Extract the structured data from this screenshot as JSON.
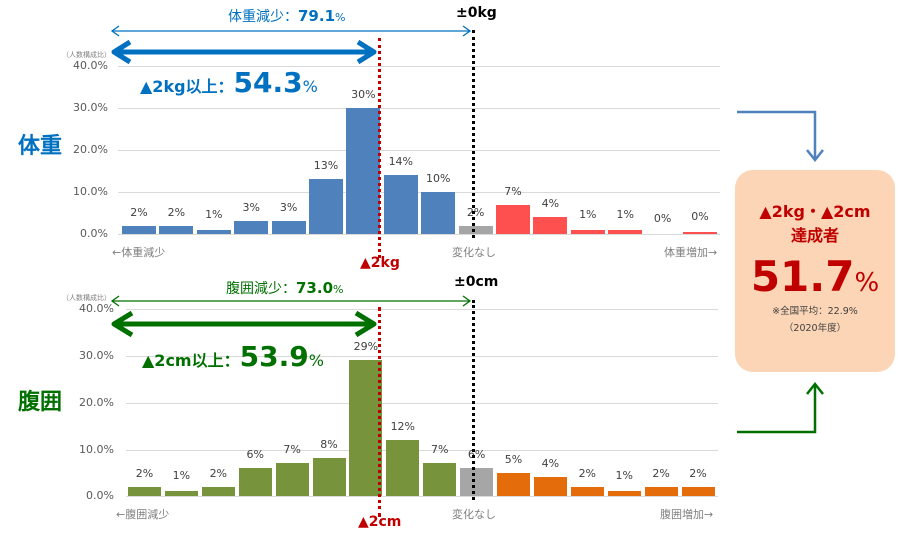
{
  "colors": {
    "weight_loss": "#4f81bd",
    "no_change": "#a6a6a6",
    "weight_gain": "#ff5050",
    "waist_loss": "#77933c",
    "waist_gain": "#e46c0a",
    "weight_accent": "#0070c0",
    "waist_accent": "#007000",
    "target_red": "#c00000",
    "summary_bg": "#fbd5b5"
  },
  "weight": {
    "section_title": "体重",
    "unit_note": "（人数構成比）",
    "loss_total_label": "体重減少：",
    "loss_total_value": "79.1",
    "loss_total_pct": "%",
    "target_label": "▲2kg以上：",
    "target_value": "54.3",
    "target_pct": "%",
    "zero_marker": "±0kg",
    "target_marker": "▲2kg",
    "axis_left": "←体重減少",
    "axis_center": "変化なし",
    "axis_right": "体重増加→"
  },
  "waist": {
    "section_title": "腹囲",
    "unit_note": "（人数構成比）",
    "loss_total_label": "腹囲減少：",
    "loss_total_value": "73.0",
    "loss_total_pct": "%",
    "target_label": "▲2cm以上：",
    "target_value": "53.9",
    "target_pct": "%",
    "zero_marker": "±0cm",
    "target_marker": "▲2cm",
    "axis_left": "←腹囲減少",
    "axis_center": "変化なし",
    "axis_right": "腹囲増加→"
  },
  "summary": {
    "line1": "▲2kg・▲2cm",
    "line2": "達成者",
    "value": "51.7",
    "pct": "%",
    "note1": "※全国平均：22.9%",
    "note2": "（2020年度）"
  },
  "chart_data": [
    {
      "type": "bar",
      "title": "体重",
      "ylabel": "（人数構成比）",
      "ylim": [
        0,
        40
      ],
      "yticks": [
        "0.0%",
        "10.0%",
        "20.0%",
        "30.0%",
        "40.0%"
      ],
      "grid": true,
      "xlabel_left": "←体重減少",
      "xlabel_center": "変化なし",
      "xlabel_right": "体重増加→",
      "categories": [
        "b1",
        "b2",
        "b3",
        "b4",
        "b5",
        "b6",
        "b7",
        "b8",
        "b9",
        "b10",
        "b11",
        "b12",
        "b13",
        "b14",
        "b15",
        "b16"
      ],
      "values": [
        2,
        2,
        1,
        3,
        3,
        13,
        30,
        14,
        10,
        2,
        7,
        4,
        1,
        1,
        0,
        0
      ],
      "labels": [
        "2%",
        "2%",
        "1%",
        "3%",
        "3%",
        "13%",
        "30%",
        "14%",
        "10%",
        "2%",
        "7%",
        "4%",
        "1%",
        "1%",
        "0%",
        "0%"
      ],
      "bar_groups": [
        "loss",
        "loss",
        "loss",
        "loss",
        "loss",
        "loss",
        "loss",
        "loss",
        "loss",
        "none",
        "gain",
        "gain",
        "gain",
        "gain",
        "gain",
        "gain"
      ],
      "annotations": [
        "体重減少：79.1%",
        "▲2kg以上：54.3%",
        "±0kg",
        "▲2kg"
      ]
    },
    {
      "type": "bar",
      "title": "腹囲",
      "ylabel": "（人数構成比）",
      "ylim": [
        0,
        40
      ],
      "yticks": [
        "0.0%",
        "10.0%",
        "20.0%",
        "30.0%",
        "40.0%"
      ],
      "grid": true,
      "xlabel_left": "←腹囲減少",
      "xlabel_center": "変化なし",
      "xlabel_right": "腹囲増加→",
      "categories": [
        "b1",
        "b2",
        "b3",
        "b4",
        "b5",
        "b6",
        "b7",
        "b8",
        "b9",
        "b10",
        "b11",
        "b12",
        "b13",
        "b14",
        "b15",
        "b16"
      ],
      "values": [
        2,
        1,
        2,
        6,
        7,
        8,
        29,
        12,
        7,
        6,
        5,
        4,
        2,
        1,
        2,
        2
      ],
      "labels": [
        "2%",
        "1%",
        "2%",
        "6%",
        "7%",
        "8%",
        "29%",
        "12%",
        "7%",
        "6%",
        "5%",
        "4%",
        "2%",
        "1%",
        "2%",
        "2%"
      ],
      "bar_groups": [
        "loss",
        "loss",
        "loss",
        "loss",
        "loss",
        "loss",
        "loss",
        "loss",
        "loss",
        "none",
        "gain",
        "gain",
        "gain",
        "gain",
        "gain",
        "gain"
      ],
      "annotations": [
        "腹囲減少：73.0%",
        "▲2cm以上：53.9%",
        "±0cm",
        "▲2cm"
      ]
    }
  ]
}
